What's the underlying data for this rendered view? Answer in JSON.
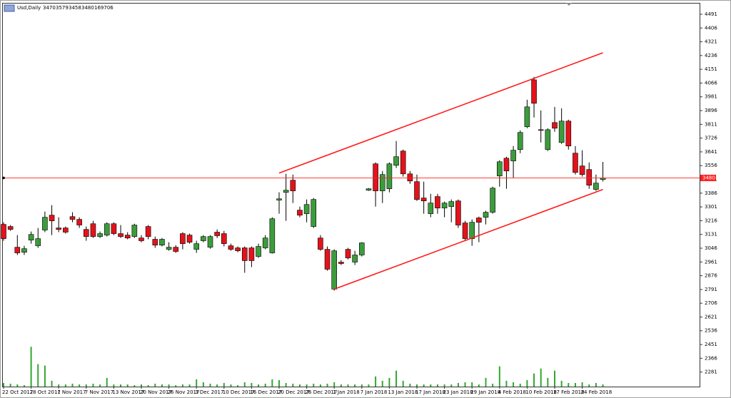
{
  "chart_data": {
    "type": "candlestick",
    "title": "Usd,Daily",
    "categories": [
      "22 Oct 2017",
      null,
      null,
      null,
      "28 Oct 2017",
      null,
      null,
      null,
      "1 Nov 2017",
      null,
      null,
      null,
      "7 Nov 2017",
      null,
      null,
      null,
      "13 Nov 2017",
      null,
      null,
      null,
      "20 Nov 2017",
      null,
      null,
      null,
      "26 Nov 2017",
      null,
      null,
      null,
      "3 Dec 2017",
      null,
      null,
      null,
      "10 Dec 2017",
      null,
      null,
      null,
      "16 Dec 2017",
      null,
      null,
      null,
      "20 Dec 2017",
      null,
      null,
      null,
      "26 Dec 2017",
      null,
      null,
      null,
      "1 Jan 2018",
      null,
      null,
      null,
      "7 Jan 2018",
      null,
      null,
      null,
      "13 Jan 2018",
      null,
      null,
      null,
      "17 Jan 2018",
      null,
      null,
      null,
      "23 Jan 2018",
      null,
      null,
      null,
      "29 Jan 2018",
      null,
      null,
      null,
      "4 Feb 2018",
      null,
      null,
      null,
      "10 Feb 2018",
      null,
      null,
      null,
      "17 Feb 2018",
      null,
      null,
      null,
      "24 Feb 2018",
      null,
      null,
      null
    ],
    "open": [
      3193,
      3180,
      3052,
      3021,
      3096,
      3061,
      3158,
      3250,
      3171,
      3171,
      3241,
      3224,
      3162,
      3197,
      3118,
      3127,
      3197,
      3136,
      3127,
      3118,
      3109,
      3180,
      3101,
      3065,
      3039,
      3052,
      3136,
      3127,
      3039,
      3092,
      3052,
      3145,
      3136,
      3061,
      3048,
      3048,
      3048,
      2995,
      3048,
      3017,
      3343,
      3391,
      3466,
      3281,
      3259,
      3180,
      3109,
      3039,
      2793,
      2960,
      3039,
      2960,
      3004,
      3404,
      3567,
      3400,
      3413,
      3558,
      3646,
      3505,
      3457,
      3356,
      3259,
      3365,
      3294,
      3303,
      3338,
      3202,
      3105,
      3233,
      3237,
      3268,
      3492,
      3602,
      3585,
      3655,
      3796,
      4086,
      3778,
      3655,
      3822,
      3699,
      3831,
      3633,
      3554,
      3532,
      3409,
      3470
    ],
    "high": [
      3206,
      3189,
      3127,
      3061,
      3149,
      3171,
      3272,
      3312,
      3237,
      3180,
      3268,
      3237,
      3180,
      3215,
      3149,
      3206,
      3206,
      3189,
      3145,
      3197,
      3127,
      3189,
      3118,
      3109,
      3083,
      3065,
      3145,
      3136,
      3092,
      3127,
      3127,
      3162,
      3153,
      3074,
      3057,
      3057,
      3057,
      3074,
      3127,
      3237,
      3391,
      3505,
      3501,
      3303,
      3347,
      3356,
      3127,
      3057,
      3039,
      2973,
      3048,
      3030,
      3083,
      3417,
      3576,
      3523,
      3576,
      3708,
      3655,
      3523,
      3501,
      3457,
      3382,
      3382,
      3334,
      3347,
      3347,
      3215,
      3224,
      3241,
      3277,
      3426,
      3589,
      3611,
      3677,
      3774,
      3963,
      4104,
      3897,
      3787,
      3919,
      3910,
      3840,
      3677,
      3651,
      3576,
      3501,
      3579
    ],
    "low": [
      3092,
      3153,
      3004,
      3004,
      3074,
      3048,
      3145,
      3127,
      3145,
      3136,
      3206,
      3171,
      3092,
      3109,
      3109,
      3118,
      3127,
      3109,
      3101,
      3109,
      3083,
      3101,
      3048,
      3057,
      3030,
      3017,
      3039,
      3074,
      3017,
      3083,
      3043,
      3109,
      3057,
      3030,
      3021,
      2894,
      2929,
      2986,
      3039,
      3013,
      3259,
      3215,
      3325,
      3237,
      3206,
      3171,
      3030,
      2907,
      2784,
      2942,
      2977,
      2942,
      2995,
      3400,
      3303,
      3325,
      3391,
      3541,
      3488,
      3444,
      3338,
      3259,
      3237,
      3259,
      3237,
      3206,
      3171,
      3092,
      3061,
      3083,
      3193,
      3259,
      3426,
      3413,
      3479,
      3633,
      3787,
      3853,
      3699,
      3646,
      3765,
      3690,
      3655,
      3501,
      3488,
      3413,
      3400,
      3458
    ],
    "close": [
      3105,
      3162,
      3017,
      3043,
      3131,
      3105,
      3237,
      3215,
      3162,
      3145,
      3224,
      3189,
      3118,
      3118,
      3136,
      3197,
      3136,
      3118,
      3109,
      3189,
      3092,
      3118,
      3065,
      3101,
      3052,
      3026,
      3074,
      3083,
      3074,
      3118,
      3118,
      3123,
      3074,
      3039,
      3030,
      2969,
      2969,
      3057,
      3109,
      3228,
      3351,
      3404,
      3400,
      3250,
      3316,
      3347,
      3039,
      2916,
      3030,
      2951,
      2986,
      3004,
      3079,
      3413,
      3400,
      3501,
      3567,
      3611,
      3505,
      3461,
      3347,
      3338,
      3325,
      3294,
      3325,
      3334,
      3189,
      3105,
      3206,
      3206,
      3268,
      3417,
      3580,
      3523,
      3651,
      3761,
      3919,
      3941,
      3774,
      3778,
      3787,
      3831,
      3677,
      3514,
      3501,
      3435,
      3448,
      3480
    ],
    "volume": [
      280000,
      224000,
      168000,
      112000,
      3080000,
      1736000,
      1624000,
      448000,
      168000,
      168000,
      224000,
      168000,
      168000,
      224000,
      168000,
      672000,
      168000,
      168000,
      168000,
      112000,
      168000,
      112000,
      224000,
      168000,
      168000,
      112000,
      168000,
      168000,
      560000,
      336000,
      224000,
      168000,
      280000,
      168000,
      112000,
      336000,
      280000,
      168000,
      224000,
      560000,
      504000,
      280000,
      224000,
      168000,
      168000,
      224000,
      168000,
      224000,
      336000,
      168000,
      168000,
      168000,
      168000,
      168000,
      784000,
      448000,
      672000,
      1232000,
      448000,
      224000,
      168000,
      168000,
      168000,
      168000,
      168000,
      168000,
      280000,
      336000,
      336000,
      168000,
      672000,
      224000,
      1568000,
      448000,
      336000,
      224000,
      504000,
      1008000,
      1400000,
      672000,
      1232000,
      448000,
      280000,
      280000,
      336000,
      168000,
      280000,
      169706
    ],
    "up_color": "#3c9c3c",
    "down_color": "#e3131b",
    "volume_color": "#2fa82f",
    "ylim": [
      2200,
      4557
    ],
    "yticks": [
      4491,
      4406,
      4321,
      4236,
      4151,
      4066,
      3981,
      3896,
      3811,
      3726,
      3641,
      3556,
      3471,
      3386,
      3301,
      3216,
      3131,
      3046,
      2961,
      2876,
      2791,
      2706,
      2621,
      2536,
      2451,
      2366,
      2281
    ],
    "volume_lim": [
      0,
      3200000
    ],
    "price_line": 3480,
    "price_line_color": "#ff2020",
    "trendlines": [
      {
        "x": [
          40,
          87
        ],
        "y": [
          3510,
          4253
        ],
        "color": "#ff1a1a"
      },
      {
        "x": [
          48,
          87
        ],
        "y": [
          2793,
          3409
        ],
        "color": "#ff1a1a"
      }
    ]
  }
}
